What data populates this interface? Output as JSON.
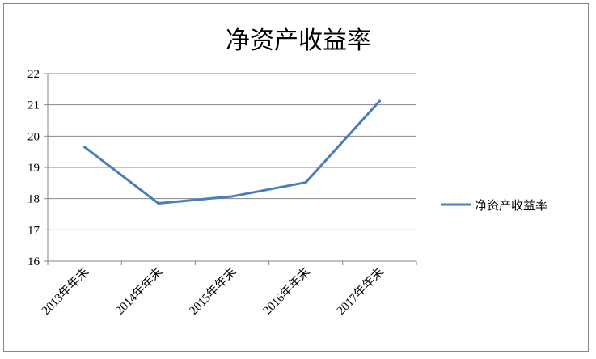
{
  "chart_data": {
    "type": "line",
    "title": "净资产收益率",
    "categories": [
      "2013年年末",
      "2014年年末",
      "2015年年末",
      "2016年年末",
      "2017年年末"
    ],
    "series": [
      {
        "name": "净资产收益率",
        "values": [
          19.65,
          17.85,
          18.07,
          18.52,
          21.12
        ],
        "color": "#4a7ebb"
      }
    ],
    "ylim": [
      16,
      22
    ],
    "yticks": [
      "16",
      "17",
      "18",
      "19",
      "20",
      "21",
      "22"
    ],
    "grid": true,
    "legend_position": "right"
  }
}
